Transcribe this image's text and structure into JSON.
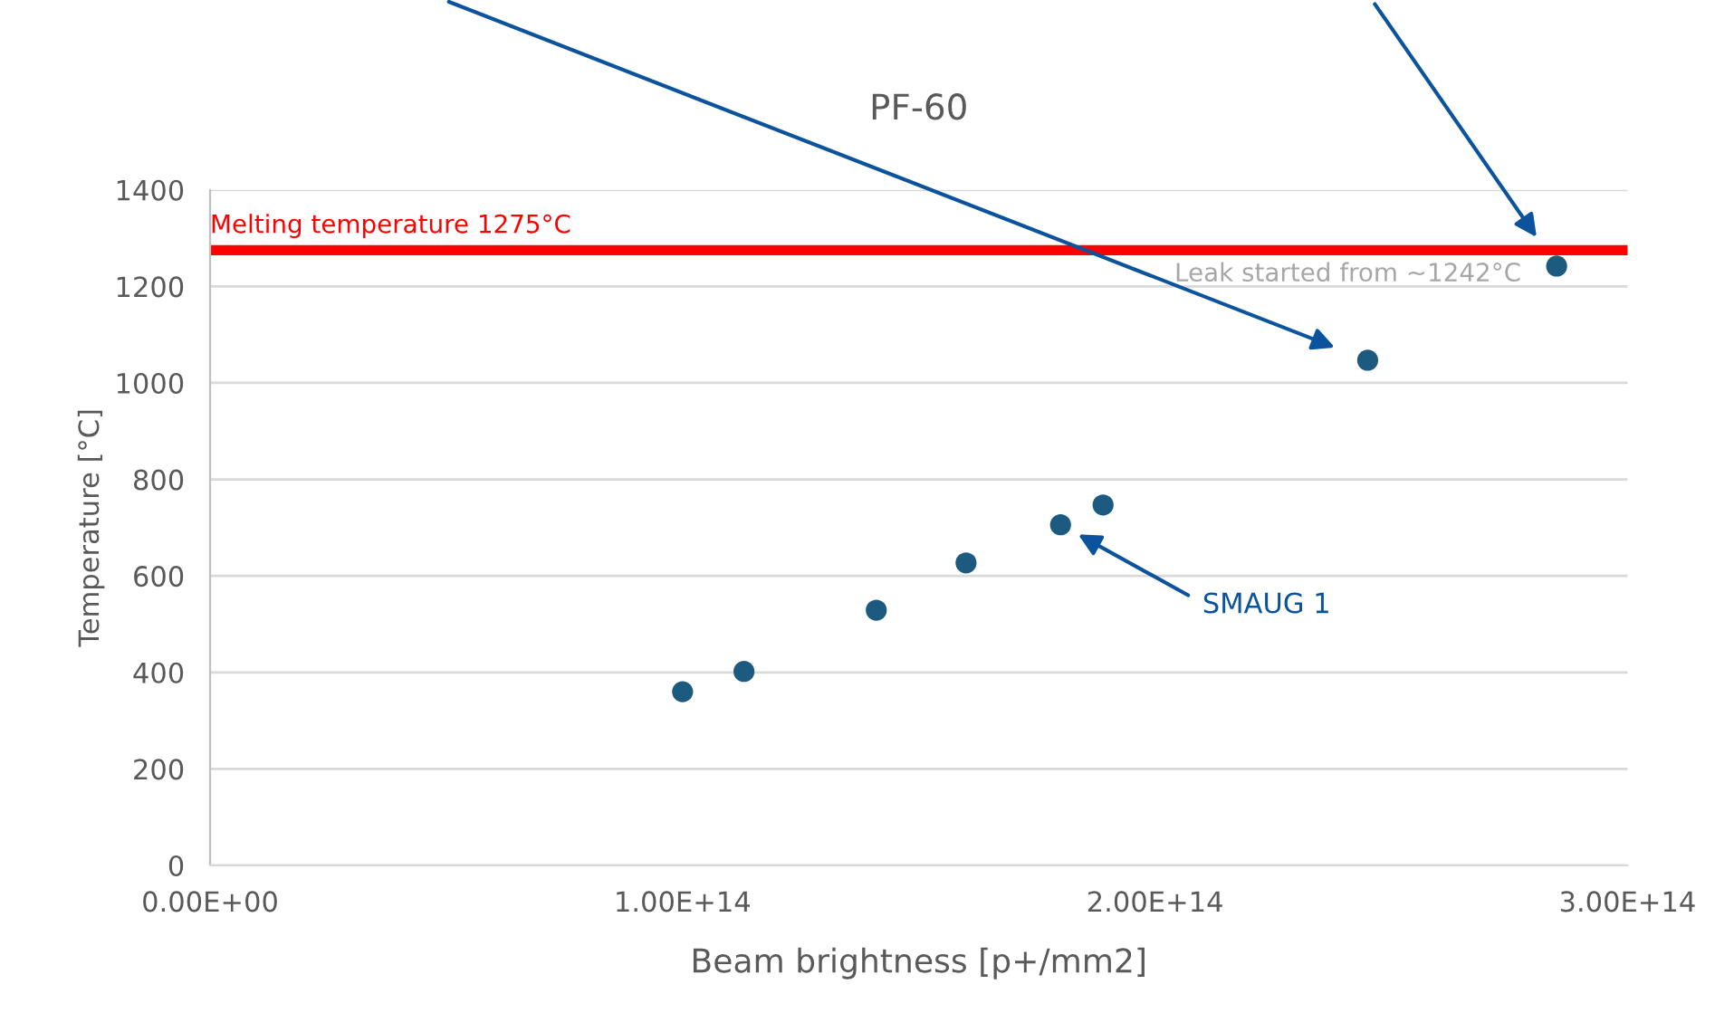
{
  "chart_data": {
    "type": "scatter",
    "title": "PF-60",
    "xlabel": "Beam brightness [p+/mm2]",
    "ylabel": "Temperature [°C]",
    "x": [
      100000000000000.0,
      113000000000000.0,
      141000000000000.0,
      160000000000000.0,
      180000000000000.0,
      189000000000000.0,
      245000000000000.0,
      285000000000000.0
    ],
    "values": [
      360,
      402,
      529,
      627,
      706,
      747,
      1047,
      1242
    ],
    "color": "#1d5a80",
    "marker": "circle",
    "grid": "y",
    "xlim": [
      0,
      300000000000000.0
    ],
    "xticks": [
      {
        "value": 0,
        "label": "0.00E+00"
      },
      {
        "value": 100000000000000.0,
        "label": "1.00E+14"
      },
      {
        "value": 200000000000000.0,
        "label": "2.00E+14"
      },
      {
        "value": 300000000000000.0,
        "label": "3.00E+14"
      }
    ],
    "ylim": [
      0,
      1400
    ],
    "yticks": [
      0,
      200,
      400,
      600,
      800,
      1000,
      1200,
      1400
    ],
    "ref_lines": [
      {
        "axis": "y",
        "value": 1275,
        "label": "Melting temperature 1275°C",
        "color": "#ff0000"
      }
    ],
    "annotations": [
      "Leak started from ~1242°C",
      "SMAUG 1"
    ]
  }
}
